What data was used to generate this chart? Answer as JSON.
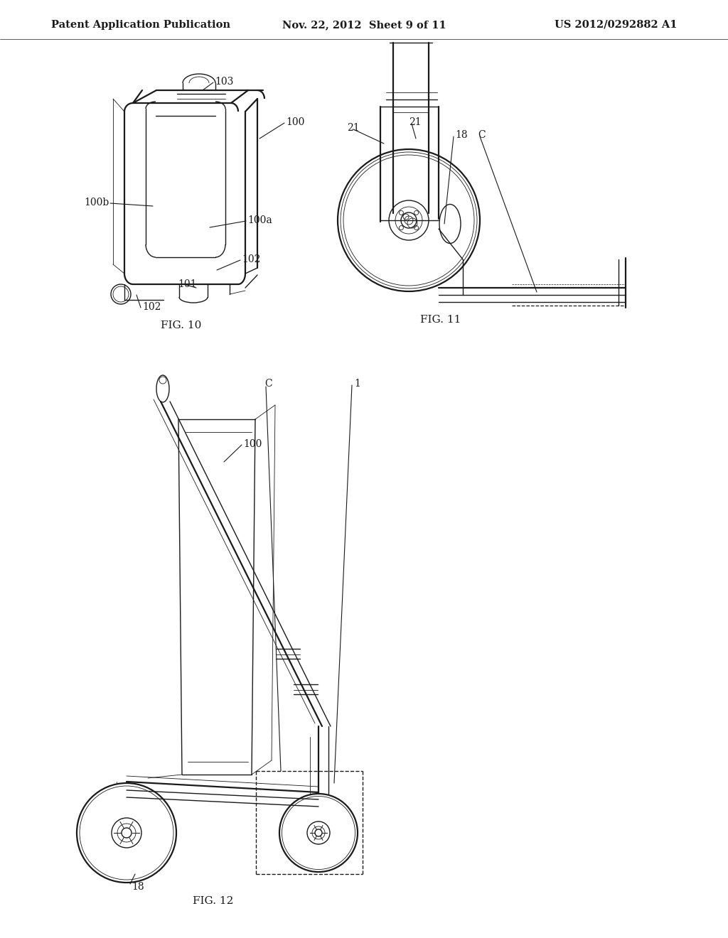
{
  "bg_color": "#ffffff",
  "header_left": "Patent Application Publication",
  "header_center": "Nov. 22, 2012  Sheet 9 of 11",
  "header_right": "US 2012/0292882 A1",
  "fig10_label": "FIG. 10",
  "fig11_label": "FIG. 11",
  "fig12_label": "FIG. 12",
  "title_fontsize": 10.5,
  "label_fontsize": 10,
  "fig_label_fontsize": 11
}
